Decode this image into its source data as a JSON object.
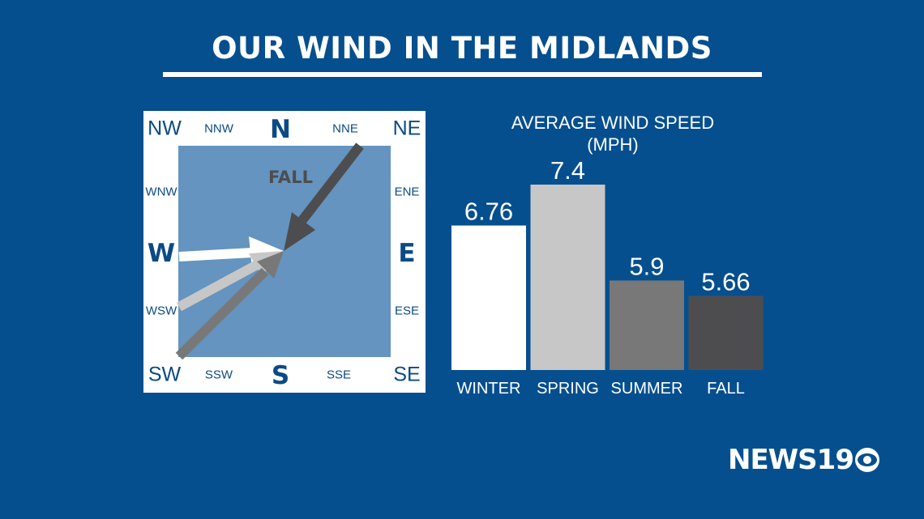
{
  "title": "OUR WIND IN THE MIDLANDS",
  "compass": {
    "nw": "NW",
    "nnw": "NNW",
    "n": "N",
    "nne": "NNE",
    "ne": "NE",
    "wnw": "WNW",
    "ene": "ENE",
    "w": "W",
    "e": "E",
    "wsw": "WSW",
    "ese": "ESE",
    "sw": "SW",
    "ssw": "SSW",
    "s": "S",
    "sse": "SSE",
    "se": "SE",
    "arrow_label": "FALL",
    "arrows": [
      {
        "season": "WINTER",
        "from": "W",
        "color": "#ffffff"
      },
      {
        "season": "SPRING",
        "from": "WSW",
        "color": "#c7c7c7"
      },
      {
        "season": "SUMMER",
        "from": "SW",
        "color": "#787878"
      },
      {
        "season": "FALL",
        "from": "NNE",
        "color": "#4d4d4f"
      }
    ]
  },
  "chart_data": {
    "type": "bar",
    "title": "AVERAGE WIND SPEED",
    "subtitle": "(MPH)",
    "categories": [
      "WINTER",
      "SPRING",
      "SUMMER",
      "FALL"
    ],
    "values": [
      6.76,
      7.4,
      5.9,
      5.66
    ],
    "value_labels": [
      "6.76",
      "7.4",
      "5.9",
      "5.66"
    ],
    "colors": [
      "#ffffff",
      "#c7c7c7",
      "#787878",
      "#4d4d4f"
    ],
    "ylim": [
      4.5,
      7.4
    ],
    "grid": false,
    "legend": "none"
  },
  "logo": {
    "text": "NEWS19",
    "network_icon": "cbs-eye-icon"
  },
  "colors": {
    "background": "#054f8f",
    "compass_inner": "#6494bf",
    "direction_text": "#0b4a86"
  }
}
